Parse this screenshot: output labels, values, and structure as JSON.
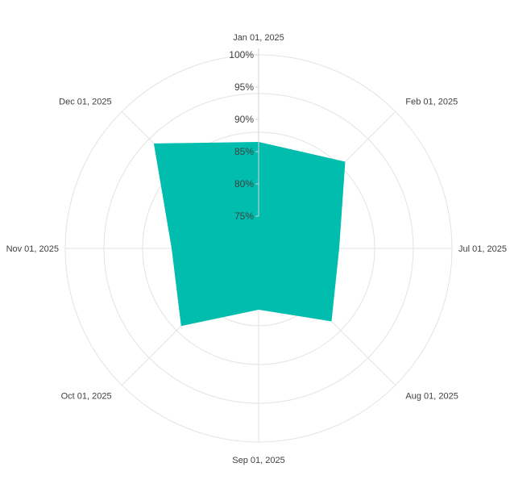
{
  "chart_data": {
    "type": "radar",
    "categories": [
      "Jan 01, 2025",
      "Feb 01, 2025",
      "Jul 01, 2025",
      "Aug 01, 2025",
      "Sep 01, 2025",
      "Oct 01, 2025",
      "Nov 01, 2025",
      "Dec 01, 2025"
    ],
    "series": [
      {
        "values": [
          86.5,
          89.0,
          82.5,
          86.0,
          79.5,
          87.0,
          83.5,
          93.0
        ]
      }
    ],
    "radial_ticks": [
      "75%",
      "80%",
      "85%",
      "90%",
      "95%",
      "100%"
    ],
    "tick_values": [
      75,
      80,
      85,
      90,
      95,
      100
    ],
    "rlim": [
      70,
      100
    ],
    "series_color": "#00bdae",
    "grid": true
  }
}
